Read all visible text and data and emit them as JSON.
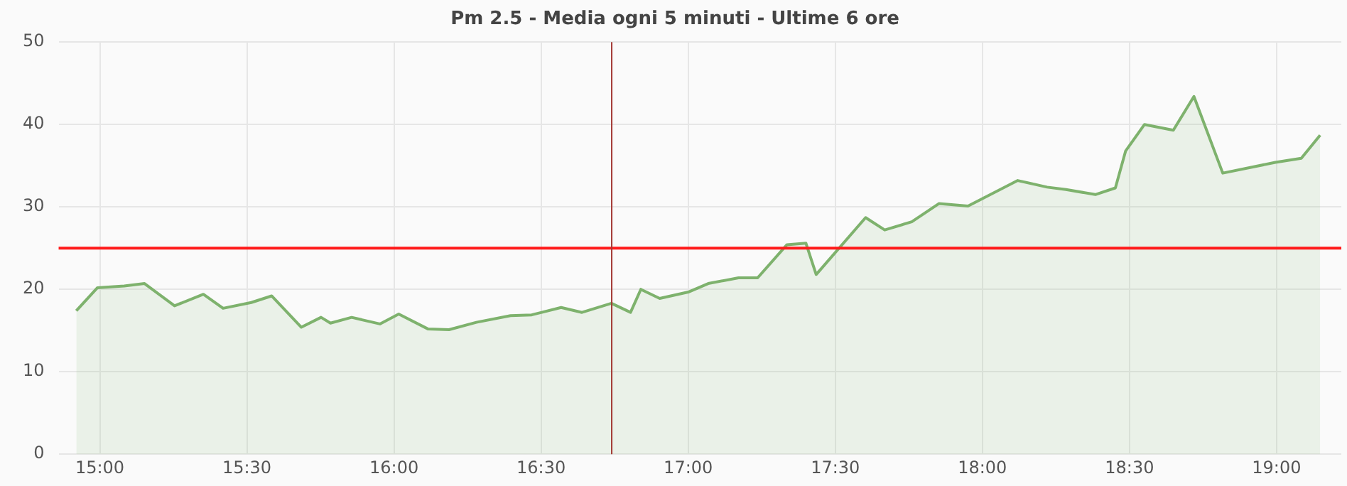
{
  "chart_data": {
    "type": "area",
    "title": "Pm 2.5 - Media ogni 5 minuti - Ultime 6 ore",
    "x": [
      14.92,
      14.992,
      15.083,
      15.152,
      15.254,
      15.352,
      15.419,
      15.515,
      15.584,
      15.685,
      15.752,
      15.784,
      15.856,
      15.952,
      16.016,
      16.115,
      16.187,
      16.28,
      16.396,
      16.468,
      16.568,
      16.639,
      16.739,
      16.804,
      16.839,
      16.903,
      17.003,
      17.068,
      17.171,
      17.236,
      17.335,
      17.4,
      17.435,
      17.603,
      17.668,
      17.76,
      17.852,
      17.951,
      18.12,
      18.22,
      18.284,
      18.384,
      18.452,
      18.487,
      18.551,
      18.649,
      18.719,
      18.817,
      18.996,
      19.084,
      19.148
    ],
    "series": [
      {
        "color": "#7eb26d",
        "values": [
          17.4,
          20.2,
          20.4,
          20.7,
          18.0,
          19.4,
          17.7,
          18.4,
          19.2,
          15.4,
          16.6,
          15.9,
          16.6,
          15.8,
          17.0,
          15.2,
          15.1,
          16.0,
          16.8,
          16.9,
          17.8,
          17.2,
          18.3,
          17.2,
          20.0,
          18.9,
          19.7,
          20.7,
          21.4,
          21.4,
          25.4,
          25.6,
          21.8,
          28.7,
          27.2,
          28.2,
          30.4,
          30.1,
          33.2,
          32.4,
          32.1,
          31.5,
          32.3,
          36.8,
          40.0,
          39.3,
          43.4,
          34.1,
          35.4,
          35.9,
          38.7
        ]
      }
    ],
    "xlim": [
      14.86,
      19.22
    ],
    "xticks": [
      {
        "value": 15,
        "label": "15:00"
      },
      {
        "value": 15.5,
        "label": "15:30"
      },
      {
        "value": 16,
        "label": "16:00"
      },
      {
        "value": 16.5,
        "label": "16:30"
      },
      {
        "value": 17,
        "label": "17:00"
      },
      {
        "value": 17.5,
        "label": "17:30"
      },
      {
        "value": 18,
        "label": "18:00"
      },
      {
        "value": 18.5,
        "label": "18:30"
      },
      {
        "value": 19,
        "label": "19:00"
      }
    ],
    "ylim": [
      0,
      50
    ],
    "yticks": [
      0,
      10,
      20,
      30,
      40,
      50
    ],
    "grid": true,
    "ref_lines": [
      {
        "axis": "y",
        "value": 25,
        "color": "#ff1a1a"
      },
      {
        "axis": "x",
        "value": 16.74,
        "color": "#a33a35"
      }
    ]
  }
}
